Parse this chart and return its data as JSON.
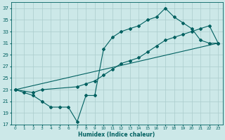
{
  "xlabel": "Humidex (Indice chaleur)",
  "bg_color": "#cce8e8",
  "line_color": "#006060",
  "grid_color": "#aacccc",
  "xlim": [
    -0.5,
    23.5
  ],
  "ylim": [
    17,
    38
  ],
  "yticks": [
    17,
    19,
    21,
    23,
    25,
    27,
    29,
    31,
    33,
    35,
    37
  ],
  "xticks": [
    0,
    1,
    2,
    3,
    4,
    5,
    6,
    7,
    8,
    9,
    10,
    11,
    12,
    13,
    14,
    15,
    16,
    17,
    18,
    19,
    20,
    21,
    22,
    23
  ],
  "line1_x": [
    0,
    1,
    2,
    3,
    4,
    5,
    6,
    7,
    8,
    9,
    10,
    11,
    12,
    13,
    14,
    15,
    16,
    17,
    18,
    19,
    20,
    21,
    22,
    23
  ],
  "line1_y": [
    23,
    22.5,
    22,
    21,
    20,
    20,
    20,
    17.5,
    22,
    22,
    30,
    32,
    33,
    33.5,
    34,
    35,
    35.5,
    37,
    35.5,
    34.5,
    33.5,
    31.5,
    31,
    31
  ],
  "line2_x": [
    0,
    2,
    3,
    7,
    8,
    9,
    10,
    11,
    12,
    13,
    14,
    15,
    16,
    17,
    18,
    19,
    20,
    21,
    22,
    23
  ],
  "line2_y": [
    23,
    22.5,
    23,
    23.5,
    24,
    24.5,
    25.5,
    26.5,
    27.5,
    28,
    28.5,
    29.5,
    30.5,
    31.5,
    32,
    32.5,
    33,
    33.5,
    34,
    31
  ],
  "line3_x": [
    0,
    23
  ],
  "line3_y": [
    23,
    31
  ]
}
